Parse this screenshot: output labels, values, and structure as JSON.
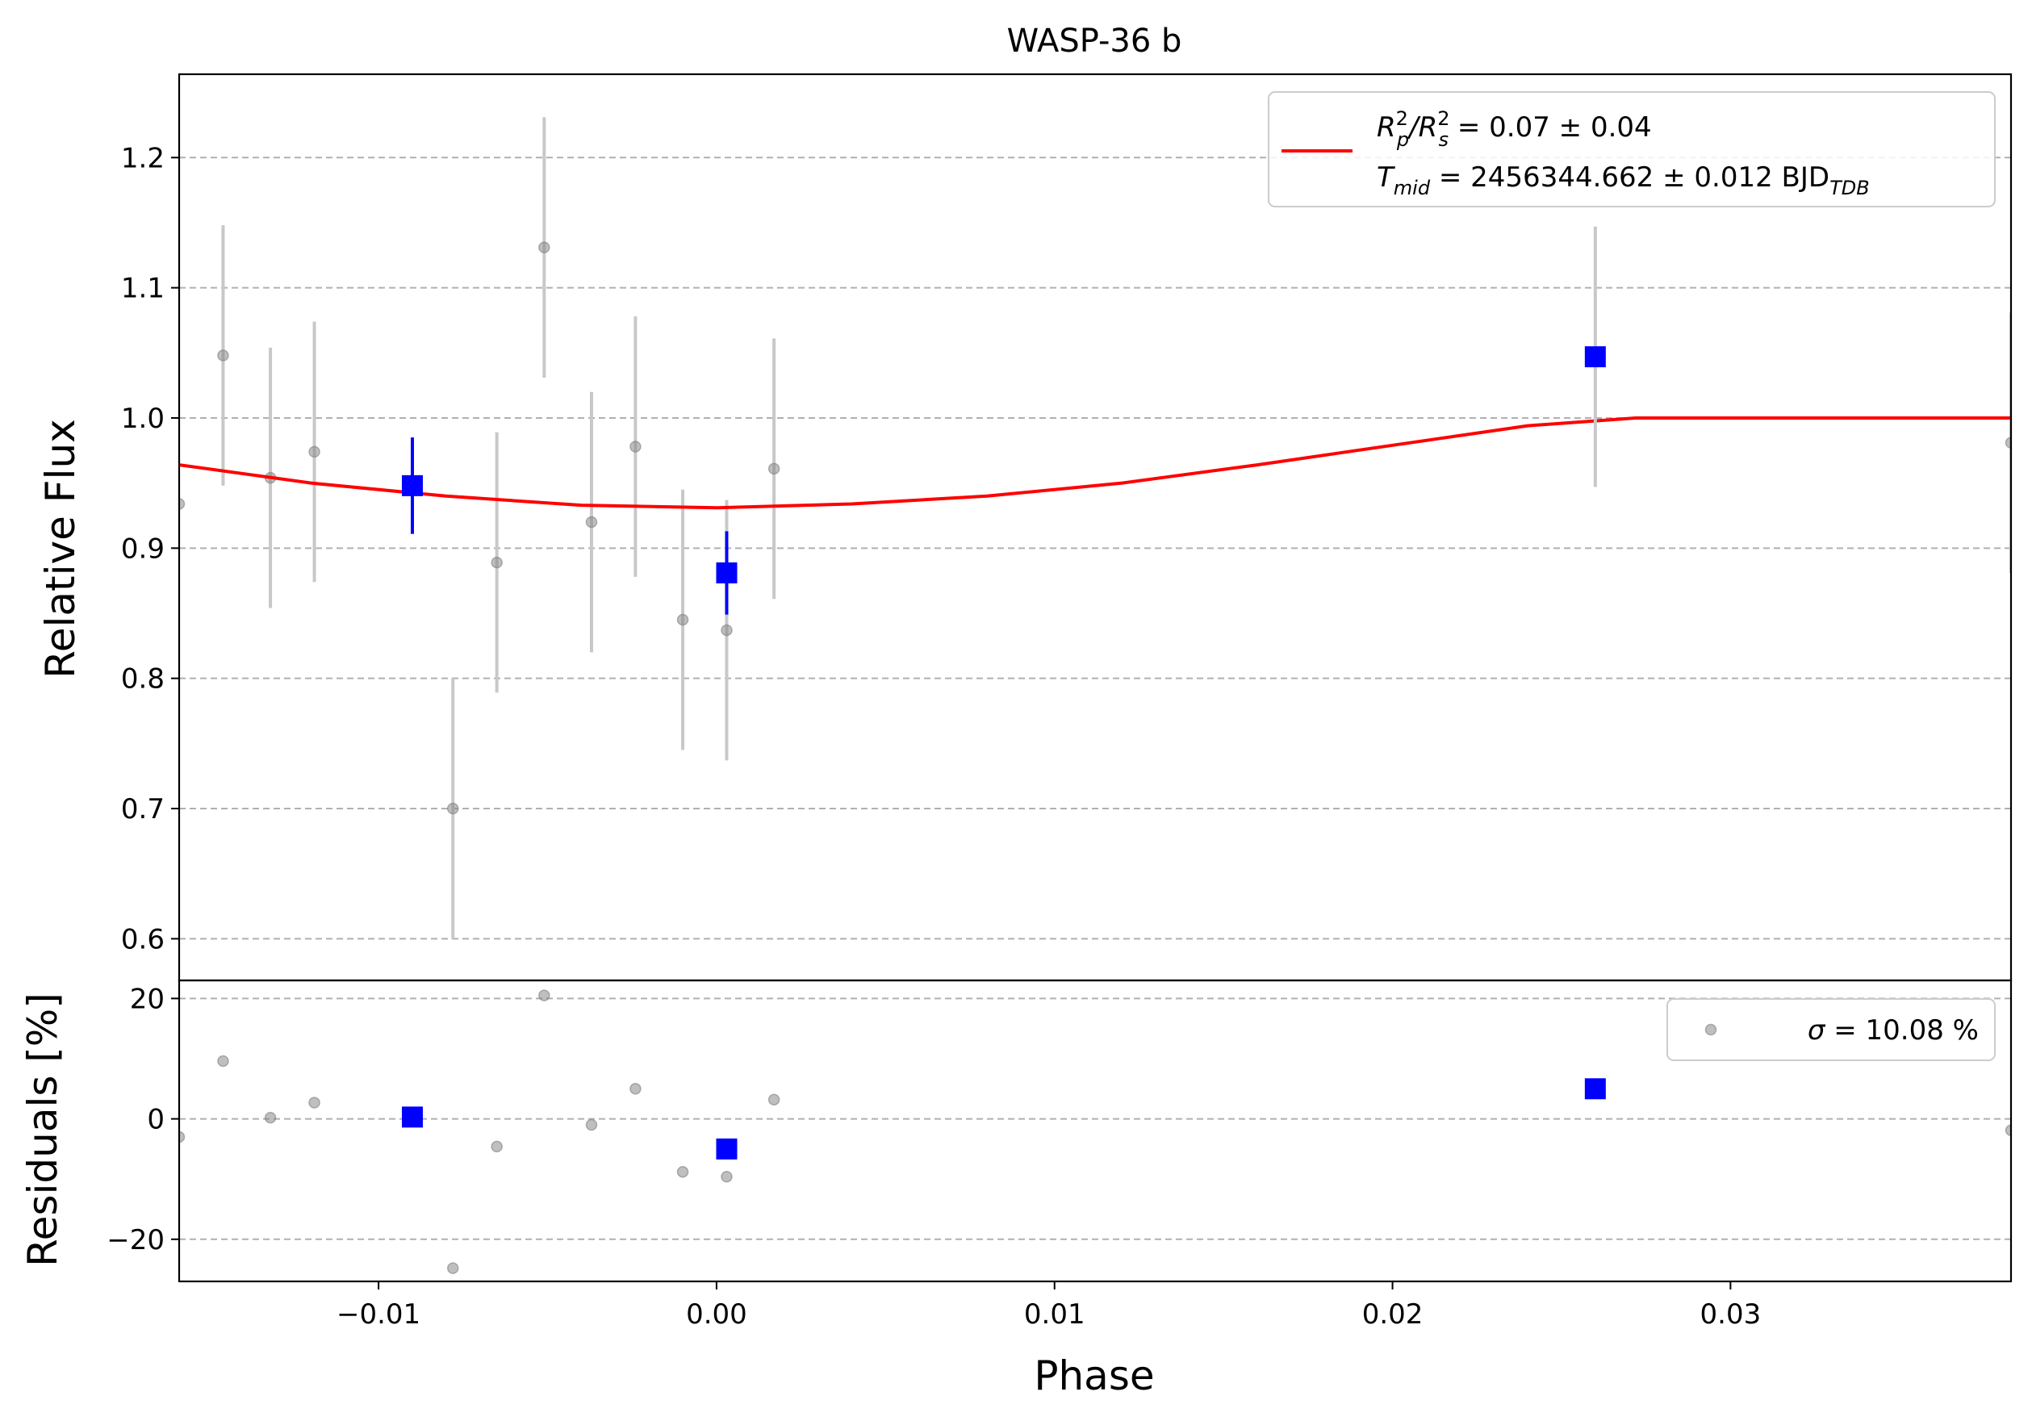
{
  "chart_data": {
    "type": "scatter",
    "title": "WASP-36 b",
    "xlabel": "Phase",
    "xlim": [
      -0.0159,
      0.0383
    ],
    "xticks": [
      -0.01,
      0.0,
      0.01,
      0.02,
      0.03
    ],
    "xtick_labels": [
      "−0.01",
      "0.00",
      "0.01",
      "0.02",
      "0.03"
    ],
    "top_panel": {
      "ylabel": "Relative Flux",
      "ylim": [
        0.568,
        1.264
      ],
      "yticks": [
        0.6,
        0.7,
        0.8,
        0.9,
        1.0,
        1.1,
        1.2
      ],
      "ytick_labels": [
        "0.6",
        "0.7",
        "0.8",
        "0.9",
        "1.0",
        "1.1",
        "1.2"
      ],
      "grid": "y-dashed",
      "legend_position": "top-right",
      "legend": {
        "line1": {
          "pre": "R",
          "sub1": "p",
          "sup1": "2",
          "mid": "/R",
          "sub2": "s",
          "sup2": "2",
          "post": " = 0.07 ± 0.04"
        },
        "line2": {
          "pre": "T",
          "sub1": "mid",
          "post": " = 2456344.662 ± 0.012 BJD",
          "sub2": "TDB"
        }
      },
      "raw_points": [
        {
          "x": -0.0159,
          "y": 0.934,
          "err": 0.0
        },
        {
          "x": -0.0146,
          "y": 1.048,
          "err": 0.1
        },
        {
          "x": -0.0132,
          "y": 0.954,
          "err": 0.1
        },
        {
          "x": -0.0119,
          "y": 0.974,
          "err": 0.1
        },
        {
          "x": -0.0078,
          "y": 0.7,
          "err": 0.1
        },
        {
          "x": -0.0065,
          "y": 0.889,
          "err": 0.1
        },
        {
          "x": -0.0051,
          "y": 1.131,
          "err": 0.1
        },
        {
          "x": -0.0037,
          "y": 0.92,
          "err": 0.1
        },
        {
          "x": -0.0024,
          "y": 0.978,
          "err": 0.1
        },
        {
          "x": -0.001,
          "y": 0.845,
          "err": 0.1
        },
        {
          "x": 0.0003,
          "y": 0.837,
          "err": 0.1
        },
        {
          "x": 0.0017,
          "y": 0.961,
          "err": 0.1
        },
        {
          "x": 0.0383,
          "y": 0.981,
          "err": 0.1
        }
      ],
      "binned_points": [
        {
          "x": -0.009,
          "y": 0.948,
          "err": 0.037
        },
        {
          "x": 0.0003,
          "y": 0.881,
          "err": 0.032
        },
        {
          "x": 0.026,
          "y": 1.047,
          "err": 0.1
        }
      ],
      "model_curve": {
        "color": "#ff0000",
        "points": [
          [
            -0.0159,
            0.964
          ],
          [
            -0.012,
            0.95
          ],
          [
            -0.008,
            0.94
          ],
          [
            -0.004,
            0.933
          ],
          [
            0.0,
            0.931
          ],
          [
            0.004,
            0.934
          ],
          [
            0.008,
            0.94
          ],
          [
            0.012,
            0.95
          ],
          [
            0.016,
            0.964
          ],
          [
            0.02,
            0.979
          ],
          [
            0.024,
            0.994
          ],
          [
            0.0272,
            1.0
          ],
          [
            0.0383,
            1.0
          ]
        ]
      }
    },
    "bottom_panel": {
      "ylabel": "Residuals [%]",
      "ylim": [
        -27,
        23
      ],
      "yticks": [
        -20,
        0,
        20
      ],
      "ytick_labels": [
        "−20",
        "0",
        "20"
      ],
      "grid": "y-dashed",
      "legend_position": "top-right",
      "legend": {
        "pre": "σ",
        "post": " = 10.08 %"
      },
      "raw_residuals": [
        {
          "x": -0.0159,
          "y": -3.0
        },
        {
          "x": -0.0146,
          "y": 9.6
        },
        {
          "x": -0.0132,
          "y": 0.2
        },
        {
          "x": -0.0119,
          "y": 2.7
        },
        {
          "x": -0.0078,
          "y": -24.8
        },
        {
          "x": -0.0065,
          "y": -4.6
        },
        {
          "x": -0.0051,
          "y": 20.5
        },
        {
          "x": -0.0037,
          "y": -1.0
        },
        {
          "x": -0.0024,
          "y": 5.0
        },
        {
          "x": -0.001,
          "y": -8.8
        },
        {
          "x": 0.0003,
          "y": -9.6
        },
        {
          "x": 0.0017,
          "y": 3.2
        },
        {
          "x": 0.0383,
          "y": -1.9
        }
      ],
      "binned_residuals": [
        {
          "x": -0.009,
          "y": 0.3
        },
        {
          "x": 0.0003,
          "y": -5.0
        },
        {
          "x": 0.026,
          "y": 5.0
        }
      ]
    },
    "colors": {
      "raw": "#808080",
      "raw_errorbar": "#c8c8c8",
      "binned": "#0000ff",
      "model": "#ff0000",
      "grid": "#b0b0b0"
    }
  }
}
